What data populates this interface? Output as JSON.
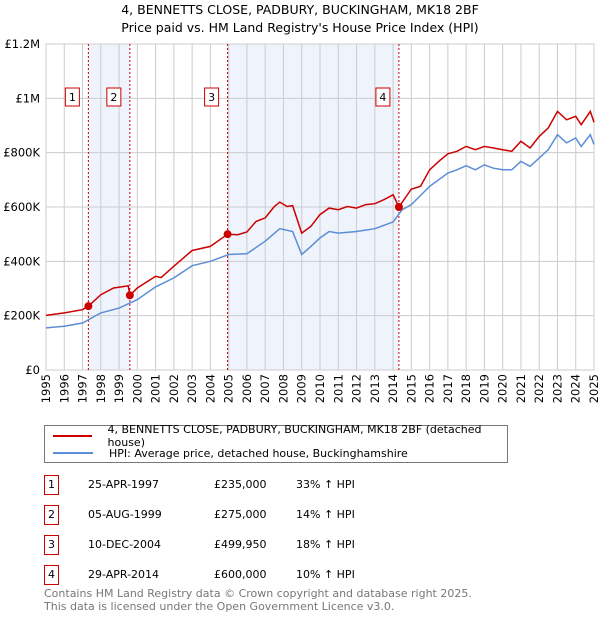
{
  "title": "4, BENNETTS CLOSE, PADBURY, BUCKINGHAM, MK18 2BF",
  "subtitle": "Price paid vs. HM Land Registry's House Price Index (HPI)",
  "colors": {
    "property": "#cc0000",
    "hpi": "#5b8ed6",
    "shade": "#eef3fc",
    "grid": "#cccccc"
  },
  "chart_data": {
    "type": "line",
    "title": "4, BENNETTS CLOSE, PADBURY, BUCKINGHAM, MK18 2BF — Price paid vs. HM Land Registry's House Price Index (HPI)",
    "xlim": [
      1995,
      2025
    ],
    "ylim": [
      0,
      1200000
    ],
    "x_ticks": [
      "1995",
      "1996",
      "1997",
      "1998",
      "1999",
      "2000",
      "2001",
      "2002",
      "2003",
      "2004",
      "2005",
      "2006",
      "2007",
      "2008",
      "2009",
      "2010",
      "2011",
      "2012",
      "2013",
      "2014",
      "2015",
      "2016",
      "2017",
      "2018",
      "2019",
      "2020",
      "2021",
      "2022",
      "2023",
      "2024",
      "2025"
    ],
    "y_ticks": [
      {
        "v": 0,
        "label": "£0"
      },
      {
        "v": 200000,
        "label": "£200K"
      },
      {
        "v": 400000,
        "label": "£400K"
      },
      {
        "v": 600000,
        "label": "£600K"
      },
      {
        "v": 800000,
        "label": "£800K"
      },
      {
        "v": 1000000,
        "label": "£1M"
      },
      {
        "v": 1200000,
        "label": "£1.2M"
      }
    ],
    "grid": true,
    "series": [
      {
        "name": "4, BENNETTS CLOSE, PADBURY, BUCKINGHAM, MK18 2BF (detached house)",
        "x": [
          1995,
          1996,
          1997,
          1997.32,
          1998,
          1998.7,
          1999.5,
          1999.6,
          2000,
          2001,
          2001.3,
          2002,
          2003,
          2004,
          2004.94,
          2005.5,
          2006,
          2006.5,
          2007,
          2007.5,
          2007.8,
          2008.2,
          2008.5,
          2009,
          2009.5,
          2010,
          2010.5,
          2011,
          2011.5,
          2012,
          2012.5,
          2013,
          2013.5,
          2014,
          2014.32,
          2015,
          2015.5,
          2016,
          2016.5,
          2017,
          2017.5,
          2018,
          2018.5,
          2019,
          2019.5,
          2020,
          2020.5,
          2021,
          2021.5,
          2022,
          2022.5,
          2023,
          2023.5,
          2024,
          2024.3,
          2024.8,
          2025
        ],
        "y": [
          201000,
          210000,
          222000,
          235000,
          277000,
          302000,
          310000,
          275000,
          302000,
          345000,
          340000,
          382000,
          440000,
          455000,
          499950,
          498000,
          508000,
          547000,
          560000,
          602000,
          618000,
          602000,
          605000,
          504000,
          529000,
          572000,
          596000,
          590000,
          602000,
          596000,
          609000,
          612000,
          627000,
          645000,
          600000,
          666000,
          676000,
          737000,
          768000,
          796000,
          805000,
          823000,
          811000,
          823000,
          817000,
          811000,
          805000,
          842000,
          817000,
          860000,
          891000,
          952000,
          921000,
          934000,
          903000,
          952000,
          912000
        ]
      },
      {
        "name": "HPI: Average price, detached house, Buckinghamshire",
        "x": [
          1995,
          1996,
          1997,
          1998,
          1999,
          2000,
          2001,
          2002,
          2003,
          2004,
          2005,
          2006,
          2007,
          2007.8,
          2008.5,
          2009,
          2009.5,
          2010,
          2010.5,
          2011,
          2012,
          2013,
          2014,
          2014.5,
          2015,
          2016,
          2017,
          2017.5,
          2018,
          2018.5,
          2019,
          2019.5,
          2020,
          2020.5,
          2021,
          2021.5,
          2022,
          2022.5,
          2023,
          2023.5,
          2024,
          2024.3,
          2024.8,
          2025
        ],
        "y": [
          155000,
          161000,
          173000,
          210000,
          228000,
          259000,
          306000,
          339000,
          384000,
          400000,
          425000,
          428000,
          474000,
          520000,
          510000,
          425000,
          455000,
          486000,
          510000,
          504000,
          510000,
          520000,
          545000,
          590000,
          609000,
          676000,
          725000,
          737000,
          752000,
          737000,
          755000,
          743000,
          737000,
          737000,
          768000,
          750000,
          780000,
          811000,
          866000,
          836000,
          854000,
          823000,
          866000,
          830000
        ]
      }
    ],
    "sales": [
      {
        "id": "1",
        "x": 1997.32,
        "date": "25-APR-1997",
        "price": 235000,
        "price_label": "£235,000",
        "hpi": "33% ↑ HPI"
      },
      {
        "id": "2",
        "x": 1999.59,
        "date": "05-AUG-1999",
        "price": 275000,
        "price_label": "£275,000",
        "hpi": "14% ↑ HPI"
      },
      {
        "id": "3",
        "x": 2004.94,
        "date": "10-DEC-2004",
        "price": 499950,
        "price_label": "£499,950",
        "hpi": "18% ↑ HPI"
      },
      {
        "id": "4",
        "x": 2014.32,
        "date": "29-APR-2014",
        "price": 600000,
        "price_label": "£600,000",
        "hpi": "10% ↑ HPI"
      }
    ],
    "shaded_ranges": [
      [
        1997.32,
        1999.59
      ],
      [
        2004.94,
        2014.32
      ]
    ]
  },
  "legend": {
    "property": "4, BENNETTS CLOSE, PADBURY, BUCKINGHAM, MK18 2BF (detached house)",
    "hpi": "HPI: Average price, detached house, Buckinghamshire"
  },
  "footer": {
    "line1": "Contains HM Land Registry data © Crown copyright and database right 2025.",
    "line2": "This data is licensed under the Open Government Licence v3.0."
  }
}
